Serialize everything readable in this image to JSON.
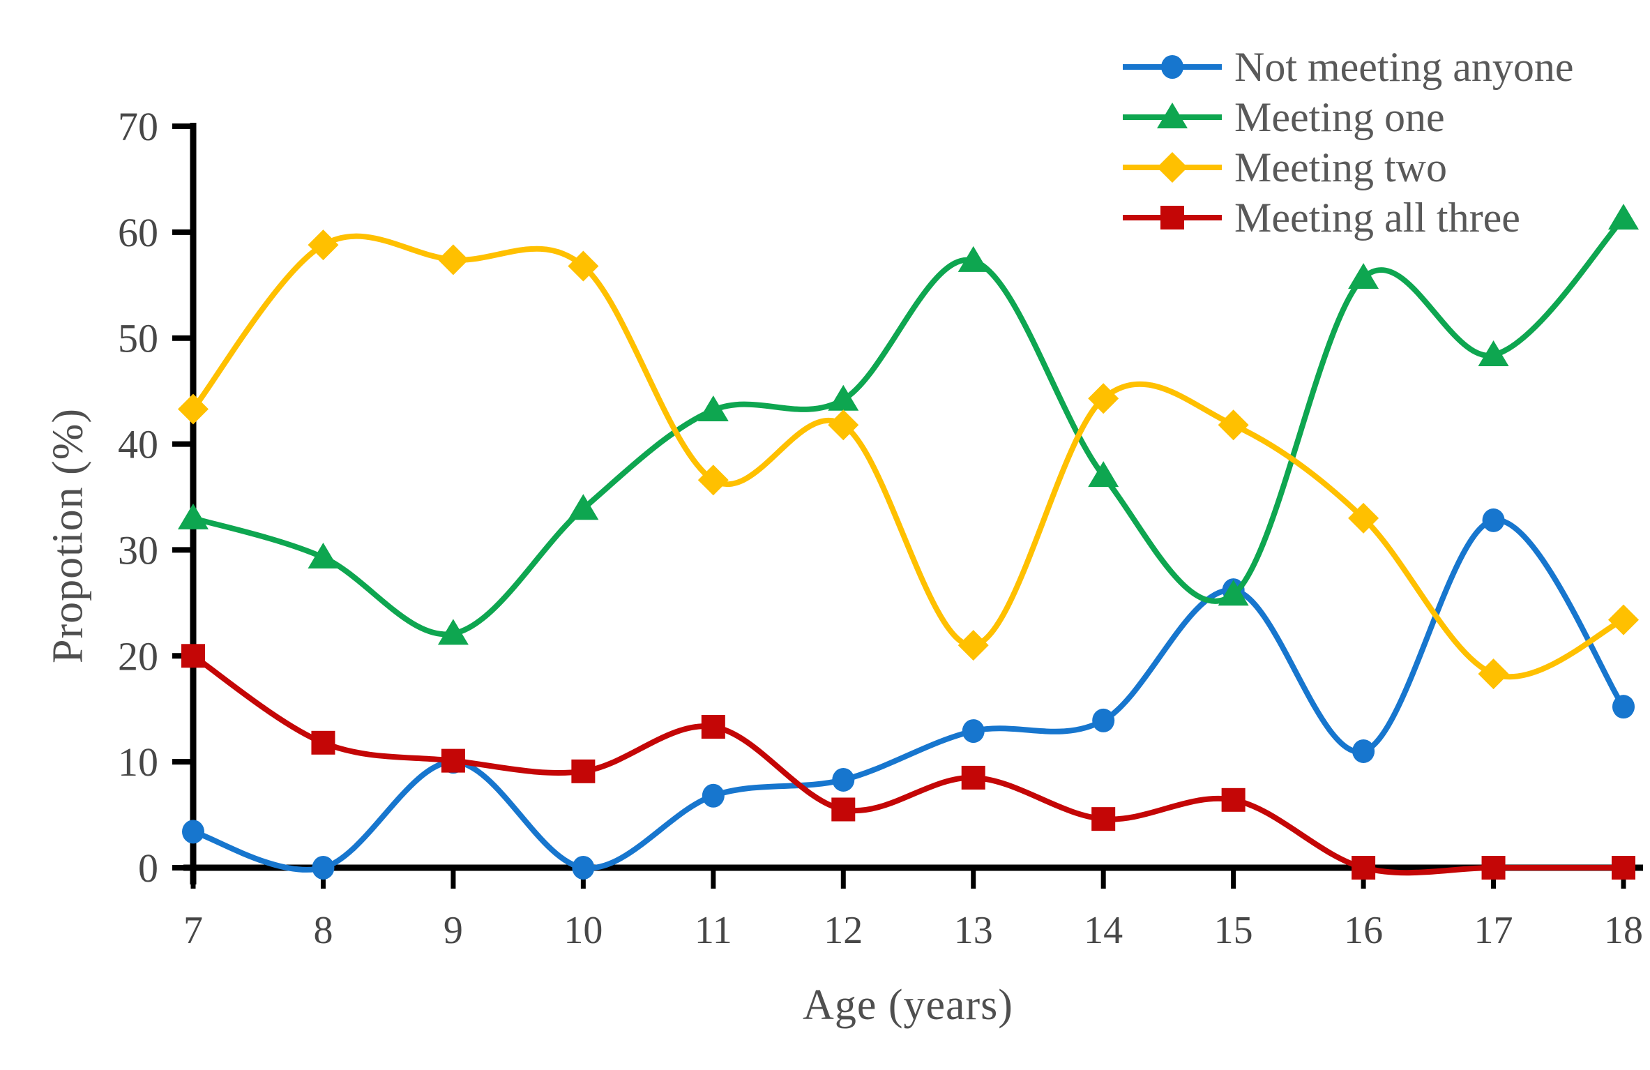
{
  "chart_data": {
    "type": "line",
    "title": "",
    "xlabel": "Age (years)",
    "ylabel": "Propotion (%)",
    "x": [
      7,
      8,
      9,
      10,
      11,
      12,
      13,
      14,
      15,
      16,
      17,
      18
    ],
    "xlim": [
      7,
      18
    ],
    "ylim": [
      0,
      70
    ],
    "yticks": [
      0,
      10,
      20,
      30,
      40,
      50,
      60,
      70
    ],
    "grid": false,
    "line_style": "smooth",
    "legend_position": "top-right",
    "series": [
      {
        "name": "Not meeting anyone",
        "marker": "circle",
        "color": "#1776CE",
        "values": [
          3.4,
          0.0,
          10.0,
          0.0,
          6.8,
          8.3,
          12.9,
          13.9,
          26.2,
          11.0,
          32.8,
          15.2
        ]
      },
      {
        "name": "Meeting one",
        "marker": "triangle",
        "color": "#0EA650",
        "values": [
          33.0,
          29.3,
          22.1,
          33.9,
          43.2,
          44.2,
          57.3,
          37.0,
          25.8,
          55.7,
          48.4,
          61.3
        ]
      },
      {
        "name": "Meeting two",
        "marker": "diamond",
        "color": "#FFC000",
        "values": [
          43.3,
          58.8,
          57.4,
          56.8,
          36.6,
          41.8,
          21.0,
          44.3,
          41.8,
          33.0,
          18.3,
          23.4
        ]
      },
      {
        "name": "Meeting all three",
        "marker": "square",
        "color": "#C40606",
        "values": [
          20.0,
          11.8,
          10.1,
          9.1,
          13.3,
          5.5,
          8.5,
          4.6,
          6.4,
          0.0,
          0.0,
          0.0
        ]
      }
    ]
  },
  "style": {
    "axis_line_color": "#000000",
    "tick_label_color": "#474747",
    "axis_title_color": "#4f4f4f",
    "legend_text_color": "#595959",
    "background_color": "#ffffff"
  }
}
